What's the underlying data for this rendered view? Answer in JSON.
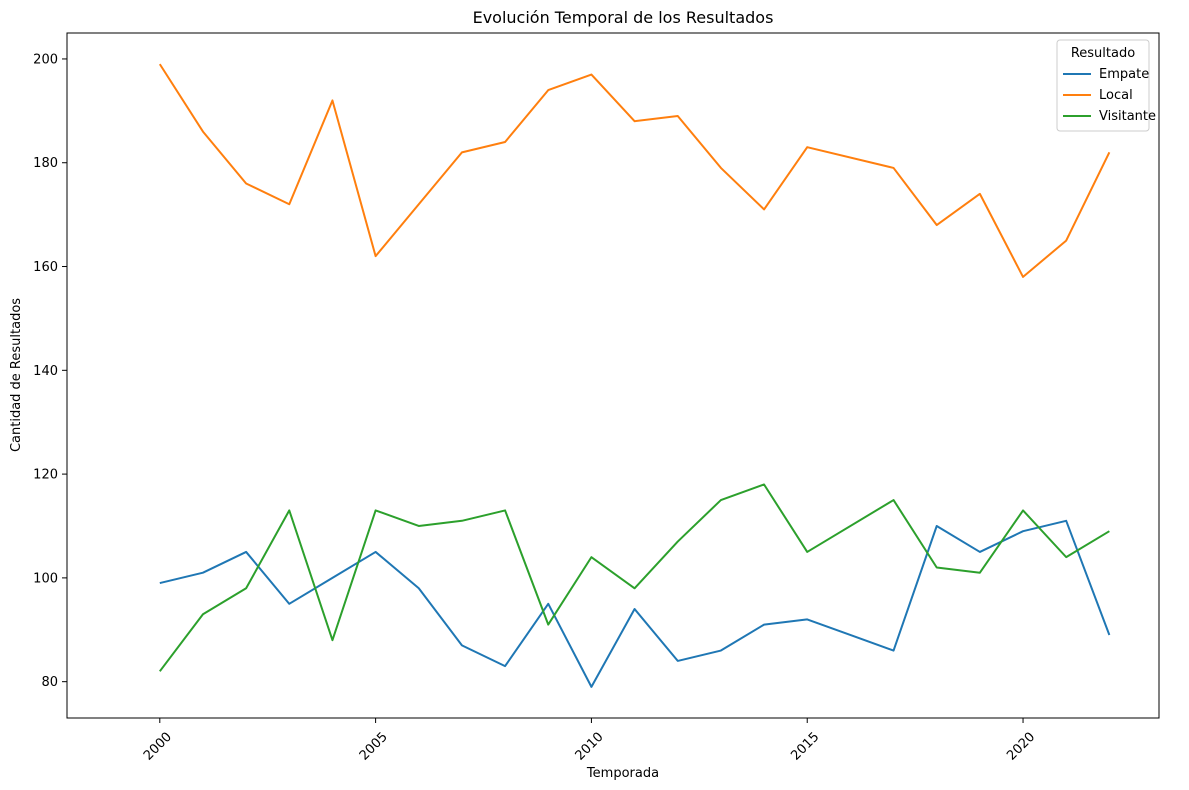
{
  "chart_data": {
    "type": "line",
    "title": "Evolución Temporal de los Resultados",
    "xlabel": "Temporada",
    "ylabel": "Cantidad de Resultados",
    "xlim": [
      1997.85,
      2023.15
    ],
    "ylim": [
      73,
      205
    ],
    "x_ticks": [
      2000,
      2005,
      2010,
      2015,
      2020
    ],
    "x_tick_labels": [
      "2000",
      "2005",
      "2010",
      "2015",
      "2020"
    ],
    "y_ticks": [
      80,
      100,
      120,
      140,
      160,
      180,
      200
    ],
    "y_tick_labels": [
      "80",
      "100",
      "120",
      "140",
      "160",
      "180",
      "200"
    ],
    "grid": false,
    "legend": {
      "title": "Resultado",
      "placement": "top-right"
    },
    "x": [
      2000,
      2001,
      2002,
      2003,
      2004,
      2005,
      2006,
      2007,
      2008,
      2009,
      2010,
      2011,
      2012,
      2013,
      2014,
      2015,
      2017,
      2018,
      2019,
      2020,
      2021,
      2022
    ],
    "series": [
      {
        "name": "Empate",
        "color": "#1f77b4",
        "values": [
          99,
          101,
          105,
          95,
          100,
          105,
          98,
          87,
          83,
          95,
          79,
          94,
          84,
          86,
          91,
          92,
          86,
          110,
          105,
          109,
          111,
          89
        ]
      },
      {
        "name": "Local",
        "color": "#ff7f0e",
        "values": [
          199,
          186,
          176,
          172,
          192,
          162,
          172,
          182,
          184,
          194,
          197,
          188,
          189,
          179,
          171,
          183,
          179,
          168,
          174,
          158,
          165,
          182
        ]
      },
      {
        "name": "Visitante",
        "color": "#2ca02c",
        "values": [
          82,
          93,
          98,
          113,
          88,
          113,
          110,
          111,
          113,
          91,
          104,
          98,
          107,
          115,
          118,
          105,
          115,
          102,
          101,
          113,
          104,
          109
        ]
      }
    ]
  }
}
